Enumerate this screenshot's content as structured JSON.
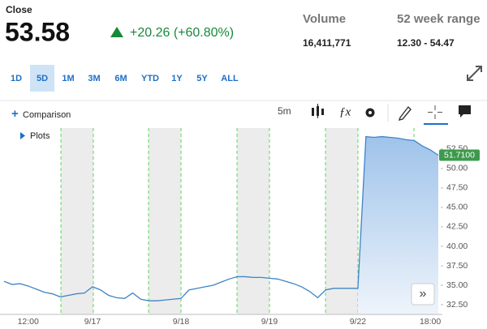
{
  "quote": {
    "label": "Close",
    "price": "53.58",
    "change": "+20.26 (+60.80%)"
  },
  "stats": [
    {
      "label": "Volume",
      "value": "16,411,771"
    },
    {
      "label": "52 week range",
      "value": "12.30 - 54.47"
    }
  ],
  "range_buttons": [
    "1D",
    "5D",
    "1M",
    "3M",
    "6M",
    "YTD",
    "1Y",
    "5Y",
    "ALL"
  ],
  "active_range": "5D",
  "toolbar": {
    "comparison": "Comparison",
    "interval": "5m",
    "plots": "Plots"
  },
  "chart_data": {
    "type": "line",
    "categories": [
      null,
      null,
      null,
      "12:00",
      null,
      null,
      null,
      null,
      null,
      null,
      null,
      "9/17",
      null,
      null,
      null,
      null,
      null,
      null,
      null,
      null,
      null,
      null,
      "9/18",
      null,
      null,
      null,
      null,
      null,
      null,
      null,
      null,
      null,
      null,
      "9/19",
      null,
      null,
      null,
      null,
      null,
      null,
      null,
      null,
      null,
      null,
      "9/22",
      null,
      null,
      null,
      null,
      null,
      null,
      null,
      null,
      "18:00",
      null
    ],
    "series": [
      {
        "color": "#3f84c6",
        "values": [
          35.5,
          35.1,
          35.2,
          34.9,
          34.5,
          34.1,
          33.9,
          33.5,
          33.7,
          33.9,
          34.0,
          34.8,
          34.4,
          33.7,
          33.4,
          33.3,
          34.0,
          33.2,
          33.0,
          33.0,
          33.1,
          33.2,
          33.3,
          34.4,
          34.6,
          34.8,
          35.0,
          35.4,
          35.8,
          36.1,
          36.1,
          36.0,
          36.0,
          35.9,
          35.8,
          35.5,
          35.2,
          34.8,
          34.2,
          33.4,
          34.4,
          34.6,
          34.6,
          34.6,
          34.6,
          54.1,
          54.0,
          54.1,
          54.0,
          53.9,
          53.7,
          53.6,
          52.9,
          52.4,
          51.71
        ],
        "value_labels": [
          null,
          null,
          null,
          null,
          null,
          null,
          null,
          null,
          null,
          null,
          null,
          null,
          null,
          null,
          null,
          null,
          null,
          null,
          null,
          null,
          null,
          null,
          null,
          null,
          null,
          null,
          null,
          null,
          null,
          null,
          null,
          null,
          null,
          null,
          null,
          null,
          null,
          null,
          null,
          null,
          null,
          null,
          null,
          null,
          null,
          null,
          null,
          null,
          null,
          null,
          null,
          null,
          null,
          null,
          "51.7100"
        ]
      }
    ],
    "ylim": [
      31.25,
      55.2
    ],
    "yticks": [
      {
        "value": 32.5,
        "label": "32.50"
      },
      {
        "value": 35,
        "label": "35.00"
      },
      {
        "value": 37.5,
        "label": "37.50"
      },
      {
        "value": 40,
        "label": "40.00"
      },
      {
        "value": 42.5,
        "label": "42.50"
      },
      {
        "value": 45,
        "label": "45.00"
      },
      {
        "value": 47.5,
        "label": "47.50"
      },
      {
        "value": 50,
        "label": "50.00"
      },
      {
        "value": 52.5,
        "label": "52.50"
      }
    ],
    "grid": false
  }
}
